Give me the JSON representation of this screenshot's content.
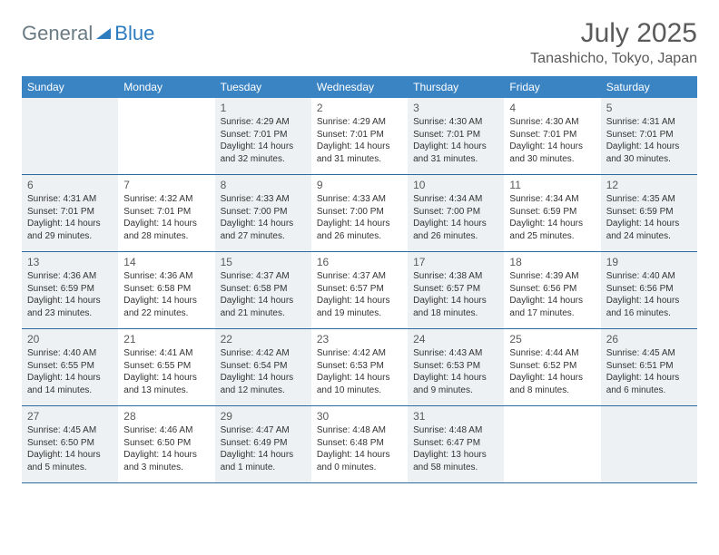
{
  "brand": {
    "text1": "General",
    "text2": "Blue",
    "color1": "#6b7b84",
    "color2": "#2d7cc0",
    "icon_fill": "#2d7cc0"
  },
  "header": {
    "month_title": "July 2025",
    "location": "Tanashicho, Tokyo, Japan",
    "title_color": "#5a5a5a",
    "title_fontsize": 30,
    "location_fontsize": 16
  },
  "colors": {
    "header_bg": "#3b84c4",
    "header_text": "#ffffff",
    "row_border": "#2d6aa0",
    "cell_bg": "#ffffff",
    "shaded_bg": "#eef1f3",
    "daynum_color": "#5a5a5a",
    "info_color": "#333333"
  },
  "weekdays": [
    "Sunday",
    "Monday",
    "Tuesday",
    "Wednesday",
    "Thursday",
    "Friday",
    "Saturday"
  ],
  "weeks": [
    [
      {
        "empty": true,
        "shaded": true
      },
      {
        "empty": true
      },
      {
        "day": "1",
        "shaded": true,
        "sunrise": "Sunrise: 4:29 AM",
        "sunset": "Sunset: 7:01 PM",
        "daylight": "Daylight: 14 hours and 32 minutes."
      },
      {
        "day": "2",
        "sunrise": "Sunrise: 4:29 AM",
        "sunset": "Sunset: 7:01 PM",
        "daylight": "Daylight: 14 hours and 31 minutes."
      },
      {
        "day": "3",
        "shaded": true,
        "sunrise": "Sunrise: 4:30 AM",
        "sunset": "Sunset: 7:01 PM",
        "daylight": "Daylight: 14 hours and 31 minutes."
      },
      {
        "day": "4",
        "sunrise": "Sunrise: 4:30 AM",
        "sunset": "Sunset: 7:01 PM",
        "daylight": "Daylight: 14 hours and 30 minutes."
      },
      {
        "day": "5",
        "shaded": true,
        "sunrise": "Sunrise: 4:31 AM",
        "sunset": "Sunset: 7:01 PM",
        "daylight": "Daylight: 14 hours and 30 minutes."
      }
    ],
    [
      {
        "day": "6",
        "shaded": true,
        "sunrise": "Sunrise: 4:31 AM",
        "sunset": "Sunset: 7:01 PM",
        "daylight": "Daylight: 14 hours and 29 minutes."
      },
      {
        "day": "7",
        "sunrise": "Sunrise: 4:32 AM",
        "sunset": "Sunset: 7:01 PM",
        "daylight": "Daylight: 14 hours and 28 minutes."
      },
      {
        "day": "8",
        "shaded": true,
        "sunrise": "Sunrise: 4:33 AM",
        "sunset": "Sunset: 7:00 PM",
        "daylight": "Daylight: 14 hours and 27 minutes."
      },
      {
        "day": "9",
        "sunrise": "Sunrise: 4:33 AM",
        "sunset": "Sunset: 7:00 PM",
        "daylight": "Daylight: 14 hours and 26 minutes."
      },
      {
        "day": "10",
        "shaded": true,
        "sunrise": "Sunrise: 4:34 AM",
        "sunset": "Sunset: 7:00 PM",
        "daylight": "Daylight: 14 hours and 26 minutes."
      },
      {
        "day": "11",
        "sunrise": "Sunrise: 4:34 AM",
        "sunset": "Sunset: 6:59 PM",
        "daylight": "Daylight: 14 hours and 25 minutes."
      },
      {
        "day": "12",
        "shaded": true,
        "sunrise": "Sunrise: 4:35 AM",
        "sunset": "Sunset: 6:59 PM",
        "daylight": "Daylight: 14 hours and 24 minutes."
      }
    ],
    [
      {
        "day": "13",
        "shaded": true,
        "sunrise": "Sunrise: 4:36 AM",
        "sunset": "Sunset: 6:59 PM",
        "daylight": "Daylight: 14 hours and 23 minutes."
      },
      {
        "day": "14",
        "sunrise": "Sunrise: 4:36 AM",
        "sunset": "Sunset: 6:58 PM",
        "daylight": "Daylight: 14 hours and 22 minutes."
      },
      {
        "day": "15",
        "shaded": true,
        "sunrise": "Sunrise: 4:37 AM",
        "sunset": "Sunset: 6:58 PM",
        "daylight": "Daylight: 14 hours and 21 minutes."
      },
      {
        "day": "16",
        "sunrise": "Sunrise: 4:37 AM",
        "sunset": "Sunset: 6:57 PM",
        "daylight": "Daylight: 14 hours and 19 minutes."
      },
      {
        "day": "17",
        "shaded": true,
        "sunrise": "Sunrise: 4:38 AM",
        "sunset": "Sunset: 6:57 PM",
        "daylight": "Daylight: 14 hours and 18 minutes."
      },
      {
        "day": "18",
        "sunrise": "Sunrise: 4:39 AM",
        "sunset": "Sunset: 6:56 PM",
        "daylight": "Daylight: 14 hours and 17 minutes."
      },
      {
        "day": "19",
        "shaded": true,
        "sunrise": "Sunrise: 4:40 AM",
        "sunset": "Sunset: 6:56 PM",
        "daylight": "Daylight: 14 hours and 16 minutes."
      }
    ],
    [
      {
        "day": "20",
        "shaded": true,
        "sunrise": "Sunrise: 4:40 AM",
        "sunset": "Sunset: 6:55 PM",
        "daylight": "Daylight: 14 hours and 14 minutes."
      },
      {
        "day": "21",
        "sunrise": "Sunrise: 4:41 AM",
        "sunset": "Sunset: 6:55 PM",
        "daylight": "Daylight: 14 hours and 13 minutes."
      },
      {
        "day": "22",
        "shaded": true,
        "sunrise": "Sunrise: 4:42 AM",
        "sunset": "Sunset: 6:54 PM",
        "daylight": "Daylight: 14 hours and 12 minutes."
      },
      {
        "day": "23",
        "sunrise": "Sunrise: 4:42 AM",
        "sunset": "Sunset: 6:53 PM",
        "daylight": "Daylight: 14 hours and 10 minutes."
      },
      {
        "day": "24",
        "shaded": true,
        "sunrise": "Sunrise: 4:43 AM",
        "sunset": "Sunset: 6:53 PM",
        "daylight": "Daylight: 14 hours and 9 minutes."
      },
      {
        "day": "25",
        "sunrise": "Sunrise: 4:44 AM",
        "sunset": "Sunset: 6:52 PM",
        "daylight": "Daylight: 14 hours and 8 minutes."
      },
      {
        "day": "26",
        "shaded": true,
        "sunrise": "Sunrise: 4:45 AM",
        "sunset": "Sunset: 6:51 PM",
        "daylight": "Daylight: 14 hours and 6 minutes."
      }
    ],
    [
      {
        "day": "27",
        "shaded": true,
        "sunrise": "Sunrise: 4:45 AM",
        "sunset": "Sunset: 6:50 PM",
        "daylight": "Daylight: 14 hours and 5 minutes."
      },
      {
        "day": "28",
        "sunrise": "Sunrise: 4:46 AM",
        "sunset": "Sunset: 6:50 PM",
        "daylight": "Daylight: 14 hours and 3 minutes."
      },
      {
        "day": "29",
        "shaded": true,
        "sunrise": "Sunrise: 4:47 AM",
        "sunset": "Sunset: 6:49 PM",
        "daylight": "Daylight: 14 hours and 1 minute."
      },
      {
        "day": "30",
        "sunrise": "Sunrise: 4:48 AM",
        "sunset": "Sunset: 6:48 PM",
        "daylight": "Daylight: 14 hours and 0 minutes."
      },
      {
        "day": "31",
        "shaded": true,
        "sunrise": "Sunrise: 4:48 AM",
        "sunset": "Sunset: 6:47 PM",
        "daylight": "Daylight: 13 hours and 58 minutes."
      },
      {
        "empty": true
      },
      {
        "empty": true,
        "shaded": true
      }
    ]
  ]
}
